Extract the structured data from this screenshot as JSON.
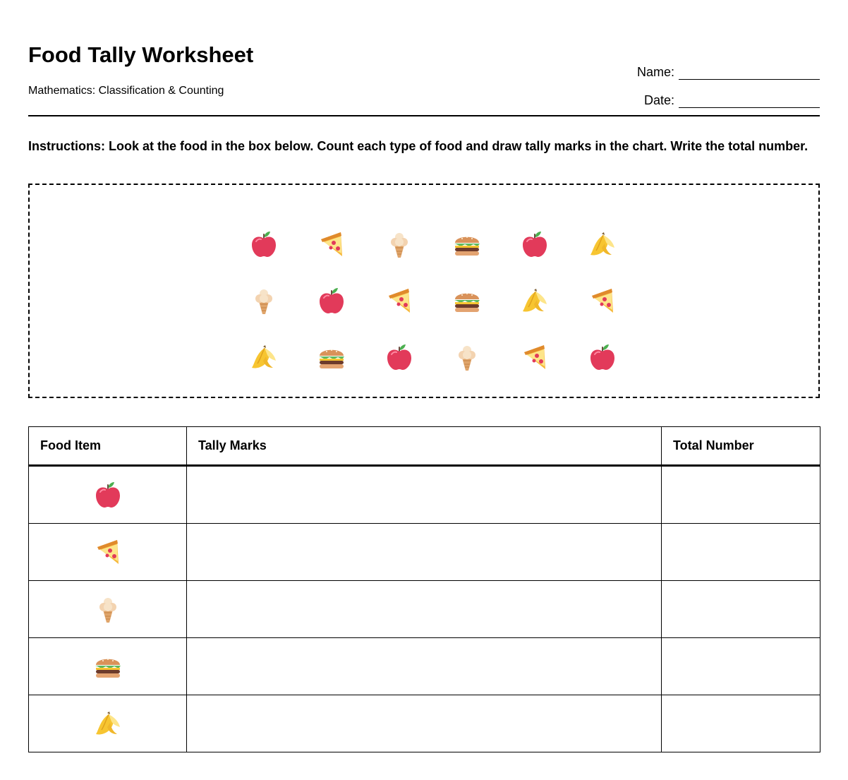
{
  "header": {
    "title": "Food Tally Worksheet",
    "subtitle": "Mathematics: Classification & Counting",
    "name_label": "Name:",
    "date_label": "Date:"
  },
  "instructions": "Instructions: Look at the food in the box below. Count each type of food and draw tally marks in the chart. Write the total number.",
  "food_box": {
    "rows": [
      [
        "apple-icon",
        "pizza-icon",
        "ice-cream-icon",
        "burger-icon",
        "apple-icon",
        "banana-icon"
      ],
      [
        "ice-cream-icon",
        "apple-icon",
        "pizza-icon",
        "burger-icon",
        "banana-icon",
        "pizza-icon"
      ],
      [
        "banana-icon",
        "burger-icon",
        "apple-icon",
        "ice-cream-icon",
        "pizza-icon",
        "apple-icon"
      ]
    ]
  },
  "table": {
    "headers": [
      "Food Item",
      "Tally Marks",
      "Total Number"
    ],
    "rows": [
      {
        "icon": "apple-icon",
        "tally": "",
        "total": ""
      },
      {
        "icon": "pizza-icon",
        "tally": "",
        "total": ""
      },
      {
        "icon": "ice-cream-icon",
        "tally": "",
        "total": ""
      },
      {
        "icon": "burger-icon",
        "tally": "",
        "total": ""
      },
      {
        "icon": "banana-icon",
        "tally": "",
        "total": ""
      }
    ]
  },
  "colors": {
    "apple": "#e23a5a",
    "pizza": "#f6b93b",
    "ice_cream": "#f3d3b0",
    "burger": "#d9925a",
    "banana": "#f7c531"
  }
}
